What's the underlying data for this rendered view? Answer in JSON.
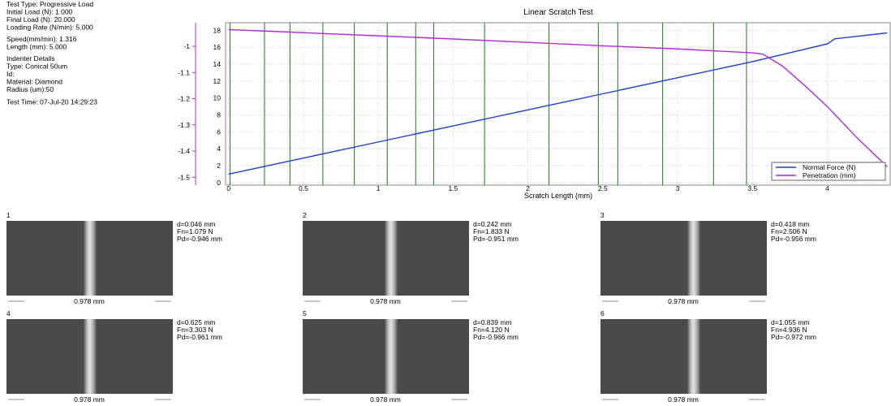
{
  "info": {
    "lines": [
      "Test Type: Progressive Load",
      "Initial Load (N): 1.000",
      "Final Load (N): 20.000",
      "Loading Rate (N/min): 5.000",
      "Speed(mm/min): 1.316",
      "Length (mm): 5.000",
      "Indenter Details",
      "Type: Conical 50um",
      "Id:",
      "Material: Diamond",
      "Radius (um):50",
      "Test Time: 07-Jul-20 14:29:23"
    ]
  },
  "chart_data": {
    "type": "line",
    "title": "Linear Scratch Test",
    "x_label": "Scratch Length (mm)",
    "series": [
      {
        "name": "Normal Force (N)",
        "color": "#1f3fd1",
        "x": [
          0,
          0.5,
          1,
          1.5,
          2,
          2.5,
          3,
          3.5,
          4,
          4.05,
          4.2,
          4.4
        ],
        "values": [
          1.0,
          2.9,
          4.8,
          6.7,
          8.6,
          10.5,
          12.4,
          14.3,
          16.4,
          17.0,
          17.3,
          17.7
        ]
      },
      {
        "name": "Penetration (mm)",
        "color": "#b02ad8",
        "axis": "y2",
        "x": [
          0,
          0.5,
          1,
          1.5,
          2,
          2.5,
          3,
          3.5,
          3.57,
          3.7,
          3.85,
          4.0,
          4.2,
          4.4
        ],
        "values": [
          -0.936,
          -0.948,
          -0.96,
          -0.972,
          -0.985,
          -0.998,
          -1.01,
          -1.025,
          -1.03,
          -1.075,
          -1.15,
          -1.23,
          -1.35,
          -1.46
        ]
      }
    ],
    "xlim": [
      -0.02,
      4.42
    ],
    "xticks": [
      0,
      0.5,
      1,
      1.5,
      2,
      2.5,
      3,
      3.5,
      4
    ],
    "ylim": [
      -0.3,
      18.9
    ],
    "yticks": [
      0,
      2,
      4,
      6,
      8,
      10,
      12,
      14,
      16,
      18
    ],
    "y2lim": [
      -1.53,
      -0.91
    ],
    "y2ticks": [
      -1,
      -1.1,
      -1.2,
      -1.3,
      -1.4,
      -1.5
    ],
    "grid": true,
    "legend": "lower right",
    "markers": {
      "color": "#1d7a1d",
      "x": [
        0.01,
        0.24,
        0.41,
        0.63,
        0.84,
        1.06,
        1.25,
        1.37,
        1.71,
        2.14,
        2.47,
        2.6,
        2.9,
        3.24,
        3.46
      ]
    }
  },
  "images": [
    {
      "number": "1",
      "lines": [
        "d=0.046 mm",
        "Fn=1.079 N",
        "Pd=-0.946 mm"
      ],
      "scale": "0.978 mm"
    },
    {
      "number": "2",
      "lines": [
        "d=0.242 mm",
        "Fn=1.833 N",
        "Pd=-0.951 mm"
      ],
      "scale": "0.978 mm"
    },
    {
      "number": "3",
      "lines": [
        "d=0.418 mm",
        "Fn=2.506 N",
        "Pd=-0.956 mm"
      ],
      "scale": "0.978 mm"
    },
    {
      "number": "4",
      "lines": [
        "d=0.625 mm",
        "Fn=3.303 N",
        "Pd=-0.961 mm"
      ],
      "scale": "0.978 mm"
    },
    {
      "number": "5",
      "lines": [
        "d=0.839 mm",
        "Fn=4.120 N",
        "Pd=-0.966 mm"
      ],
      "scale": "0.978 mm"
    },
    {
      "number": "6",
      "lines": [
        "d=1.055 mm",
        "Fn=4.936 N",
        "Pd=-0.972 mm"
      ],
      "scale": "0.978 mm"
    }
  ]
}
